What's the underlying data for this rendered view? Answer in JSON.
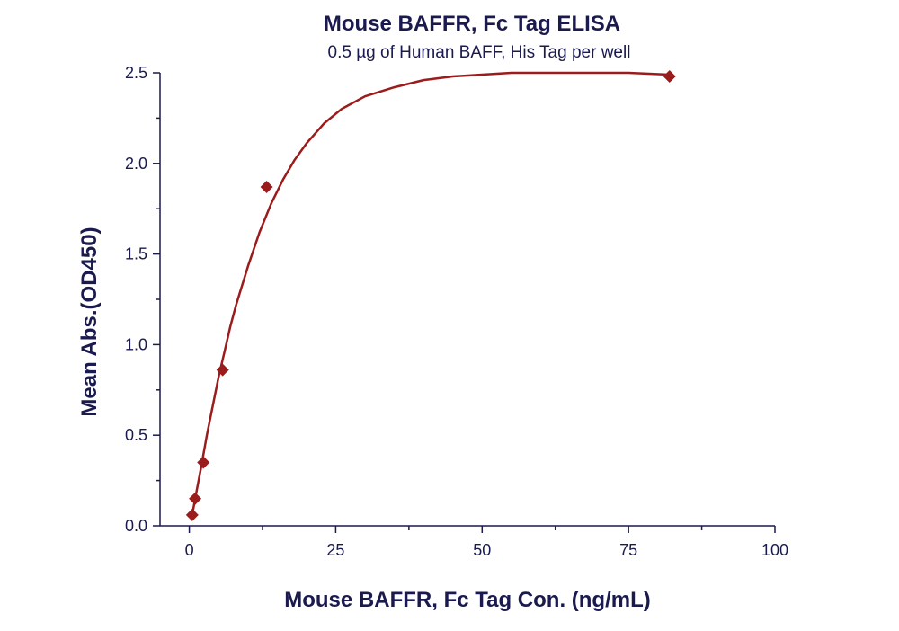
{
  "chart_data": {
    "type": "scatter",
    "title": "Mouse BAFFR, Fc Tag ELISA",
    "subtitle": "0.5 µg of Human BAFF, His Tag per well",
    "xlabel": "Mouse BAFFR, Fc Tag Con. (ng/mL)",
    "ylabel": "Mean Abs.(OD450)",
    "xlim": [
      -5,
      100
    ],
    "ylim": [
      0,
      2.5
    ],
    "x_ticks": [
      0,
      25,
      50,
      75,
      100
    ],
    "y_ticks": [
      0.0,
      0.5,
      1.0,
      1.5,
      2.0,
      2.5
    ],
    "x_tick_labels": [
      "0",
      "25",
      "50",
      "75",
      "100"
    ],
    "y_tick_labels": [
      "0.0",
      "0.5",
      "1.0",
      "1.5",
      "2.0",
      "2.5"
    ],
    "grid": false,
    "series": [
      {
        "points": [
          {
            "x": 0.5,
            "y": 0.06
          },
          {
            "x": 1.0,
            "y": 0.15
          },
          {
            "x": 2.4,
            "y": 0.35
          },
          {
            "x": 5.7,
            "y": 0.86
          },
          {
            "x": 13.2,
            "y": 1.87
          },
          {
            "x": 82.0,
            "y": 2.48
          }
        ],
        "fit_curve": [
          {
            "x": 0.5,
            "y": 0.06
          },
          {
            "x": 1.0,
            "y": 0.15
          },
          {
            "x": 2.0,
            "y": 0.32
          },
          {
            "x": 3.0,
            "y": 0.5
          },
          {
            "x": 4.0,
            "y": 0.66
          },
          {
            "x": 5.0,
            "y": 0.82
          },
          {
            "x": 6.0,
            "y": 0.96
          },
          {
            "x": 7.0,
            "y": 1.1
          },
          {
            "x": 8.0,
            "y": 1.22
          },
          {
            "x": 10.0,
            "y": 1.43
          },
          {
            "x": 12.0,
            "y": 1.62
          },
          {
            "x": 14.0,
            "y": 1.78
          },
          {
            "x": 16.0,
            "y": 1.91
          },
          {
            "x": 18.0,
            "y": 2.02
          },
          {
            "x": 20.0,
            "y": 2.11
          },
          {
            "x": 23.0,
            "y": 2.22
          },
          {
            "x": 26.0,
            "y": 2.3
          },
          {
            "x": 30.0,
            "y": 2.37
          },
          {
            "x": 35.0,
            "y": 2.42
          },
          {
            "x": 40.0,
            "y": 2.46
          },
          {
            "x": 45.0,
            "y": 2.48
          },
          {
            "x": 50.0,
            "y": 2.49
          },
          {
            "x": 55.0,
            "y": 2.5
          },
          {
            "x": 65.0,
            "y": 2.5
          },
          {
            "x": 75.0,
            "y": 2.5
          },
          {
            "x": 82.0,
            "y": 2.49
          }
        ]
      }
    ],
    "colors": {
      "series": "#9b1c1c",
      "text": "#1a1a4e",
      "axis": "#1a1a4e"
    }
  }
}
